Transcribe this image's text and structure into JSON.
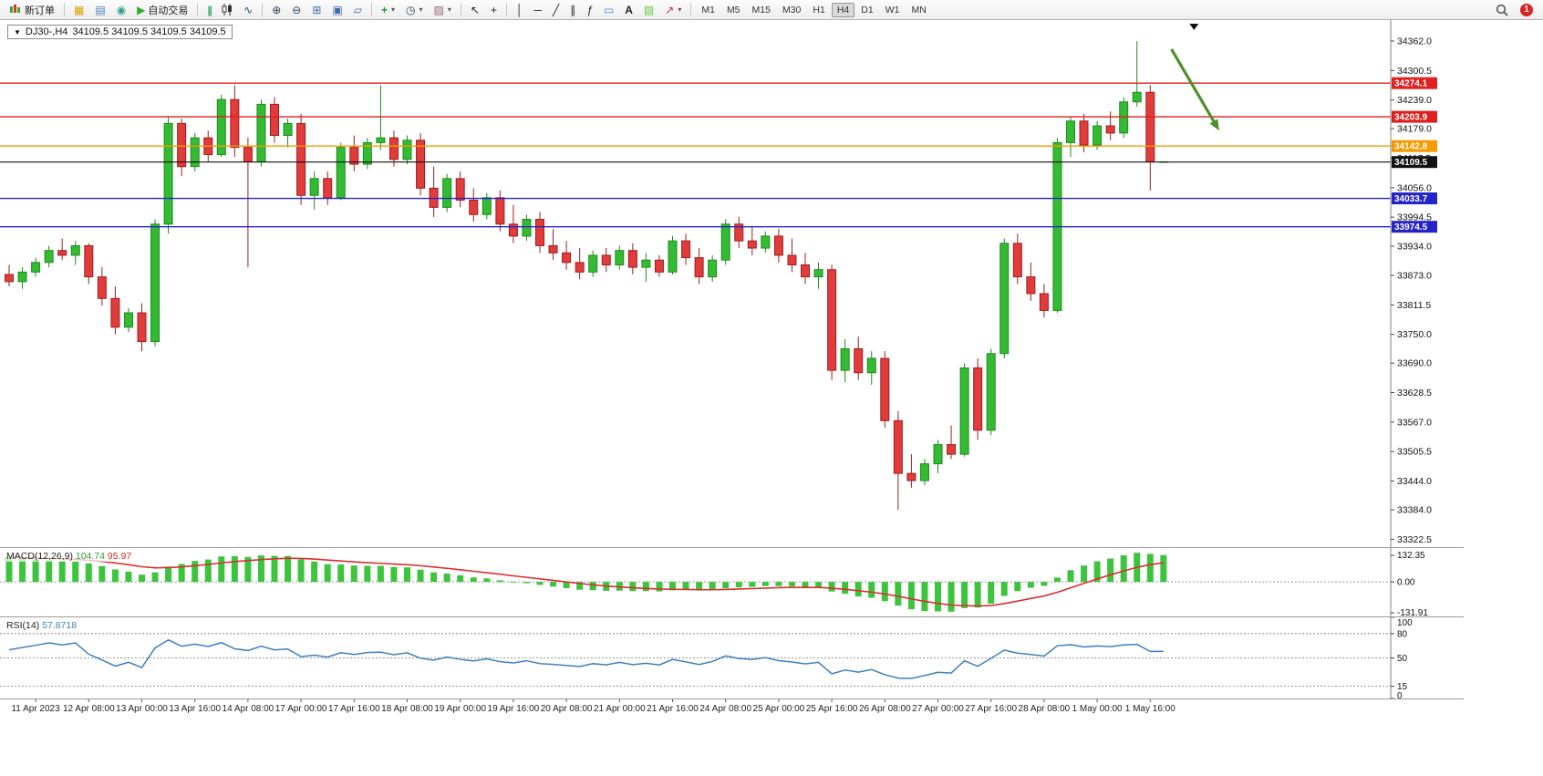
{
  "toolbar": {
    "new_order_label": "新订单",
    "auto_trading_label": "自动交易",
    "timeframes": [
      "M1",
      "M5",
      "M15",
      "M30",
      "H1",
      "H4",
      "D1",
      "W1",
      "MN"
    ],
    "active_timeframe": "H4",
    "notification_count": "1"
  },
  "chart": {
    "symbol_period": "DJ30-,H4",
    "ohlc": "34109.5 34109.5 34109.5 34109.5"
  },
  "chart_data": {
    "type": "candlestick",
    "symbol": "DJ30-",
    "timeframe": "H4",
    "current_price": 34109.5,
    "price_axis_ticks": [
      "34362.0",
      "34300.5",
      "34239.0",
      "34179.0",
      "34117.5",
      "34056.0",
      "33994.5",
      "33934.0",
      "33873.0",
      "33811.5",
      "33750.0",
      "33690.0",
      "33628.5",
      "33567.0",
      "33505.5",
      "33444.0",
      "33384.0",
      "33322.5"
    ],
    "hlines": [
      {
        "price": 34274.1,
        "label": "34274.1",
        "color": "#e01f1f"
      },
      {
        "price": 34203.9,
        "label": "34203.9",
        "color": "#e01f1f"
      },
      {
        "price": 34142.8,
        "label": "34142.8",
        "color": "#f59b00"
      },
      {
        "price": 34033.7,
        "label": "34033.7",
        "color": "#2424c8"
      },
      {
        "price": 33974.5,
        "label": "33974.5",
        "color": "#2424c8"
      }
    ],
    "current_price_line": {
      "price": 34109.5,
      "label": "34109.5",
      "color": "#111111"
    },
    "candles": [
      [
        33875,
        33895,
        33850,
        33860
      ],
      [
        33860,
        33890,
        33845,
        33880
      ],
      [
        33880,
        33910,
        33870,
        33900
      ],
      [
        33900,
        33935,
        33890,
        33925
      ],
      [
        33925,
        33950,
        33905,
        33915
      ],
      [
        33915,
        33945,
        33895,
        33935
      ],
      [
        33935,
        33940,
        33855,
        33870
      ],
      [
        33870,
        33890,
        33810,
        33825
      ],
      [
        33825,
        33850,
        33750,
        33765
      ],
      [
        33765,
        33805,
        33755,
        33795
      ],
      [
        33795,
        33815,
        33715,
        33735
      ],
      [
        33735,
        33990,
        33725,
        33980
      ],
      [
        33980,
        34205,
        33960,
        34190
      ],
      [
        34190,
        34200,
        34080,
        34100
      ],
      [
        34100,
        34170,
        34090,
        34160
      ],
      [
        34160,
        34175,
        34110,
        34125
      ],
      [
        34125,
        34250,
        34120,
        34240
      ],
      [
        34240,
        34270,
        34120,
        34140
      ],
      [
        34140,
        34160,
        33890,
        34110
      ],
      [
        34110,
        34240,
        34100,
        34230
      ],
      [
        34230,
        34245,
        34150,
        34165
      ],
      [
        34165,
        34200,
        34140,
        34190
      ],
      [
        34190,
        34210,
        34020,
        34040
      ],
      [
        34040,
        34090,
        34010,
        34075
      ],
      [
        34075,
        34090,
        34020,
        34035
      ],
      [
        34035,
        34150,
        34030,
        34140
      ],
      [
        34140,
        34165,
        34090,
        34105
      ],
      [
        34105,
        34160,
        34095,
        34150
      ],
      [
        34150,
        34270,
        34135,
        34160
      ],
      [
        34160,
        34175,
        34100,
        34115
      ],
      [
        34115,
        34165,
        34105,
        34155
      ],
      [
        34155,
        34170,
        34040,
        34055
      ],
      [
        34055,
        34100,
        33995,
        34015
      ],
      [
        34015,
        34085,
        34005,
        34075
      ],
      [
        34075,
        34090,
        34015,
        34030
      ],
      [
        34030,
        34055,
        33985,
        34000
      ],
      [
        34000,
        34045,
        33990,
        34035
      ],
      [
        34035,
        34050,
        33965,
        33980
      ],
      [
        33980,
        34020,
        33940,
        33955
      ],
      [
        33955,
        34000,
        33945,
        33990
      ],
      [
        33990,
        34005,
        33920,
        33935
      ],
      [
        33935,
        33970,
        33905,
        33920
      ],
      [
        33920,
        33945,
        33885,
        33900
      ],
      [
        33900,
        33930,
        33865,
        33880
      ],
      [
        33880,
        33925,
        33870,
        33915
      ],
      [
        33915,
        33930,
        33880,
        33895
      ],
      [
        33895,
        33935,
        33885,
        33925
      ],
      [
        33925,
        33940,
        33875,
        33890
      ],
      [
        33890,
        33920,
        33860,
        33905
      ],
      [
        33905,
        33915,
        33870,
        33880
      ],
      [
        33880,
        33955,
        33875,
        33945
      ],
      [
        33945,
        33960,
        33895,
        33910
      ],
      [
        33910,
        33930,
        33855,
        33870
      ],
      [
        33870,
        33915,
        33860,
        33905
      ],
      [
        33905,
        33990,
        33895,
        33980
      ],
      [
        33980,
        33995,
        33930,
        33945
      ],
      [
        33945,
        33975,
        33915,
        33930
      ],
      [
        33930,
        33965,
        33920,
        33955
      ],
      [
        33955,
        33970,
        33900,
        33915
      ],
      [
        33915,
        33950,
        33880,
        33895
      ],
      [
        33895,
        33920,
        33855,
        33870
      ],
      [
        33870,
        33900,
        33845,
        33885
      ],
      [
        33885,
        33895,
        33655,
        33675
      ],
      [
        33675,
        33740,
        33650,
        33720
      ],
      [
        33720,
        33745,
        33655,
        33670
      ],
      [
        33670,
        33715,
        33645,
        33700
      ],
      [
        33700,
        33715,
        33555,
        33570
      ],
      [
        33570,
        33590,
        33384,
        33460
      ],
      [
        33460,
        33500,
        33430,
        33445
      ],
      [
        33445,
        33490,
        33435,
        33480
      ],
      [
        33480,
        33530,
        33460,
        33520
      ],
      [
        33520,
        33560,
        33490,
        33500
      ],
      [
        33500,
        33690,
        33495,
        33680
      ],
      [
        33680,
        33700,
        33530,
        33550
      ],
      [
        33550,
        33720,
        33540,
        33710
      ],
      [
        33710,
        33950,
        33700,
        33940
      ],
      [
        33940,
        33960,
        33855,
        33870
      ],
      [
        33870,
        33900,
        33820,
        33835
      ],
      [
        33835,
        33855,
        33785,
        33800
      ],
      [
        33800,
        34160,
        33795,
        34150
      ],
      [
        34150,
        34205,
        34120,
        34195
      ],
      [
        34195,
        34210,
        34130,
        34145
      ],
      [
        34145,
        34195,
        34135,
        34185
      ],
      [
        34185,
        34215,
        34155,
        34170
      ],
      [
        34170,
        34245,
        34160,
        34235
      ],
      [
        34235,
        34362,
        34225,
        34255
      ],
      [
        34255,
        34270,
        34050,
        34110
      ],
      [
        34109.5,
        34109.5,
        34109.5,
        34109.5
      ]
    ],
    "time_labels": [
      {
        "i": 2,
        "t": "11 Apr 2023"
      },
      {
        "i": 6,
        "t": "12 Apr 08:00"
      },
      {
        "i": 10,
        "t": "13 Apr 00:00"
      },
      {
        "i": 14,
        "t": "13 Apr 16:00"
      },
      {
        "i": 18,
        "t": "14 Apr 08:00"
      },
      {
        "i": 22,
        "t": "17 Apr 00:00"
      },
      {
        "i": 26,
        "t": "17 Apr 16:00"
      },
      {
        "i": 30,
        "t": "18 Apr 08:00"
      },
      {
        "i": 34,
        "t": "19 Apr 00:00"
      },
      {
        "i": 38,
        "t": "19 Apr 16:00"
      },
      {
        "i": 42,
        "t": "20 Apr 08:00"
      },
      {
        "i": 46,
        "t": "21 Apr 00:00"
      },
      {
        "i": 50,
        "t": "21 Apr 16:00"
      },
      {
        "i": 54,
        "t": "24 Apr 08:00"
      },
      {
        "i": 58,
        "t": "25 Apr 00:00"
      },
      {
        "i": 62,
        "t": "25 Apr 16:00"
      },
      {
        "i": 66,
        "t": "26 Apr 08:00"
      },
      {
        "i": 70,
        "t": "27 Apr 00:00"
      },
      {
        "i": 74,
        "t": "27 Apr 16:00"
      },
      {
        "i": 78,
        "t": "28 Apr 08:00"
      },
      {
        "i": 82,
        "t": "1 May 00:00"
      },
      {
        "i": 86,
        "t": "1 May 16:00"
      }
    ],
    "macd": {
      "label": "MACD(12,26,9)",
      "main": "104.74",
      "signal": "95.97",
      "axis": [
        "132.35",
        "0.00",
        "-131.91"
      ],
      "params": [
        12,
        26,
        9
      ]
    },
    "rsi": {
      "label": "RSI(14)",
      "value": "57.8718",
      "axis": [
        "100",
        "80",
        "50",
        "15",
        "0"
      ],
      "levels": [
        80,
        50,
        15
      ],
      "period": 14
    },
    "annotation_arrow": {
      "from_index": 87.6,
      "from_price": 34345,
      "to_index": 91.2,
      "to_price": 34175,
      "color": "#4f8f2b"
    },
    "shift_marker_index": 89.3,
    "colors": {
      "bull": "#33bb33",
      "bull_edge": "#1e8a1e",
      "bear": "#e23b3b",
      "bear_edge": "#9c1f1f",
      "macd_hist": "#3dc43d",
      "macd_signal": "#d92f2f",
      "rsi_line": "#3f7fbf"
    }
  }
}
